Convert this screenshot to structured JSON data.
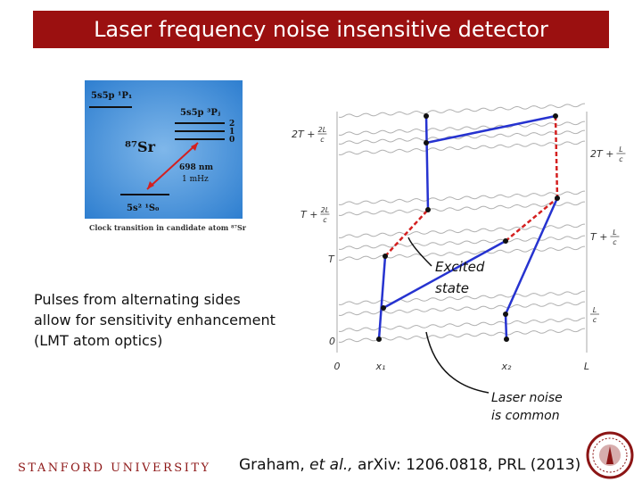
{
  "title": "Laser frequency noise insensitive detector",
  "energy_diagram": {
    "upper_level": "5s5p ¹P₁",
    "triplet_level": "5s5p ³Pⱼ",
    "sublevels": [
      "2",
      "1",
      "0"
    ],
    "atom": "⁸⁷Sr",
    "wavelength": "698 nm",
    "linewidth": "1 mHz",
    "ground_level": "5s² ¹S₀",
    "caption": "Clock transition in candidate atom ⁸⁷Sr"
  },
  "bullet_text": [
    "Pulses from alternating sides",
    "allow for sensitivity enhancement",
    "(LMT atom optics)"
  ],
  "spacetime": {
    "left_labels": [
      {
        "text": "2T +",
        "num": "2L",
        "den": "c"
      },
      {
        "text": "T +",
        "num": "2L",
        "den": "c"
      },
      {
        "text": "T"
      },
      {
        "text": "0"
      }
    ],
    "right_labels": [
      {
        "text": "2T +",
        "num": "L",
        "den": "c"
      },
      {
        "text": "T +",
        "num": "L",
        "den": "c"
      },
      {
        "num": "L",
        "den": "c"
      }
    ],
    "x_labels": [
      "0",
      "x₁",
      "x₂",
      "L"
    ]
  },
  "annotations": {
    "excited_state": [
      "Excited",
      "state"
    ],
    "laser_noise": [
      "Laser noise",
      "is common"
    ]
  },
  "citation": [
    "Graham,",
    "et al.,",
    "arXiv: 1206.0818, PRL (2013)"
  ],
  "footer": "STANFORD UNIVERSITY"
}
